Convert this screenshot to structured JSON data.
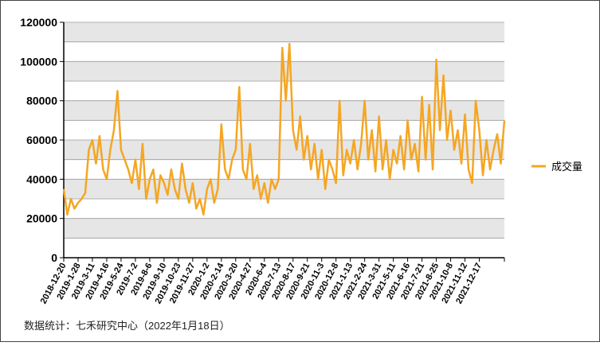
{
  "chart_data": {
    "type": "line",
    "categories": [
      "2018-12-20",
      null,
      null,
      null,
      "2019-1-28",
      null,
      null,
      null,
      "2019-3-11",
      null,
      null,
      null,
      "2019-4-16",
      null,
      null,
      null,
      "2019-5-24",
      null,
      null,
      null,
      "2019-7-2",
      null,
      null,
      null,
      "2019-8-6",
      null,
      null,
      null,
      "2019-9-10",
      null,
      null,
      null,
      "2019-10-23",
      null,
      null,
      null,
      "2019-11-27",
      null,
      null,
      null,
      "2020-1-2",
      null,
      null,
      null,
      "2020-2-14",
      null,
      null,
      null,
      "2020-3-20",
      null,
      null,
      null,
      "2020-4-27",
      null,
      null,
      null,
      "2020-6-4",
      null,
      null,
      null,
      "2020-7-13",
      null,
      null,
      null,
      "2020-8-17",
      null,
      null,
      null,
      "2020-9-21",
      null,
      null,
      null,
      "2020-11-3",
      null,
      null,
      null,
      "2020-12-8",
      null,
      null,
      null,
      "2021-1-13",
      null,
      null,
      null,
      "2021-2-24",
      null,
      null,
      null,
      "2021-3-31",
      null,
      null,
      null,
      "2021-5-11",
      null,
      null,
      null,
      "2021-6-16",
      null,
      null,
      null,
      "2021-7-21",
      null,
      null,
      null,
      "2021-8-25",
      null,
      null,
      null,
      "2021-10-8",
      null,
      null,
      null,
      "2021-11-12",
      null,
      null,
      null,
      "2021-12-17",
      null,
      null,
      null,
      null,
      null,
      null,
      null
    ],
    "series": [
      {
        "name": "成交量",
        "color": "#f5a623",
        "values": [
          35000,
          22000,
          30000,
          25000,
          28000,
          30000,
          33000,
          55000,
          60000,
          48000,
          62000,
          45000,
          40000,
          55000,
          65000,
          85000,
          55000,
          50000,
          45000,
          38000,
          50000,
          35000,
          58000,
          30000,
          40000,
          45000,
          28000,
          42000,
          38000,
          32000,
          45000,
          35000,
          30000,
          48000,
          35000,
          28000,
          38000,
          25000,
          30000,
          22000,
          35000,
          40000,
          28000,
          35000,
          68000,
          45000,
          40000,
          50000,
          55000,
          87000,
          45000,
          40000,
          58000,
          35000,
          42000,
          30000,
          38000,
          28000,
          40000,
          35000,
          40000,
          107000,
          80000,
          109000,
          65000,
          55000,
          72000,
          50000,
          62000,
          45000,
          58000,
          40000,
          55000,
          35000,
          50000,
          45000,
          38000,
          80000,
          42000,
          55000,
          48000,
          60000,
          45000,
          58000,
          80000,
          50000,
          65000,
          44000,
          72000,
          45000,
          60000,
          40000,
          55000,
          48000,
          62000,
          45000,
          70000,
          50000,
          58000,
          44000,
          82000,
          50000,
          78000,
          45000,
          101000,
          65000,
          93000,
          60000,
          75000,
          55000,
          65000,
          48000,
          73000,
          45000,
          38000,
          80000,
          65000,
          42000,
          60000,
          45000,
          55000,
          63000,
          48000,
          70000
        ]
      }
    ],
    "ylim": [
      0,
      120000
    ],
    "yticks": [
      0,
      20000,
      40000,
      60000,
      80000,
      100000,
      120000
    ],
    "legend": "right",
    "note": "数据统计：七禾研究中心（2022年1月18日）"
  }
}
